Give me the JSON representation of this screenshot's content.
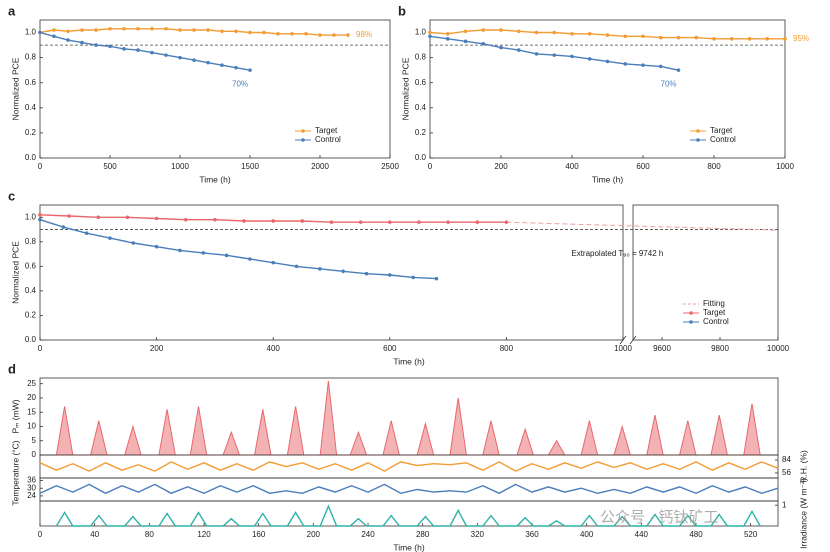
{
  "chart_data": [
    {
      "type": "line",
      "panel": "a",
      "xlabel": "Time (h)",
      "ylabel": "Normalized PCE",
      "xlim": [
        0,
        2500
      ],
      "xticks": [
        0,
        500,
        1000,
        1500,
        2000,
        2500
      ],
      "ylim": [
        0,
        1.1
      ],
      "yticks": [
        {
          "value": 0,
          "label": "0.0"
        },
        0.2,
        0.4,
        0.6,
        0.8,
        {
          "value": 1,
          "label": "1.0"
        }
      ],
      "reference_line": 0.9,
      "markers": true,
      "legend": "lower right",
      "series": [
        {
          "name": "Target",
          "color": "#f39c34",
          "end_label": "98%",
          "x": [
            0,
            100,
            200,
            300,
            400,
            500,
            600,
            700,
            800,
            900,
            1000,
            1100,
            1200,
            1300,
            1400,
            1500,
            1600,
            1700,
            1800,
            1900,
            2000,
            2100,
            2200
          ],
          "values": [
            1.0,
            1.02,
            1.01,
            1.02,
            1.02,
            1.03,
            1.03,
            1.03,
            1.03,
            1.03,
            1.02,
            1.02,
            1.02,
            1.01,
            1.01,
            1.0,
            1.0,
            0.99,
            0.99,
            0.99,
            0.98,
            0.98,
            0.98
          ]
        },
        {
          "name": "Control",
          "color": "#4a7ebb",
          "end_label": "70%",
          "x": [
            0,
            100,
            200,
            300,
            400,
            500,
            600,
            700,
            800,
            900,
            1000,
            1100,
            1200,
            1300,
            1400,
            1500
          ],
          "values": [
            1.0,
            0.97,
            0.94,
            0.92,
            0.9,
            0.89,
            0.87,
            0.86,
            0.84,
            0.82,
            0.8,
            0.78,
            0.76,
            0.74,
            0.72,
            0.7
          ]
        }
      ]
    },
    {
      "type": "line",
      "panel": "b",
      "xlabel": "Time (h)",
      "ylabel": "Normalized PCE",
      "xlim": [
        0,
        1000
      ],
      "xticks": [
        0,
        200,
        400,
        600,
        800,
        1000
      ],
      "ylim": [
        0,
        1.1
      ],
      "yticks": [
        {
          "value": 0,
          "label": "0.0"
        },
        0.2,
        0.4,
        0.6,
        0.8,
        {
          "value": 1,
          "label": "1.0"
        }
      ],
      "reference_line": 0.9,
      "markers": true,
      "legend": "lower right",
      "series": [
        {
          "name": "Target",
          "color": "#f39c34",
          "end_label": "95%",
          "x": [
            0,
            50,
            100,
            150,
            200,
            250,
            300,
            350,
            400,
            450,
            500,
            550,
            600,
            650,
            700,
            750,
            800,
            850,
            900,
            950,
            1000
          ],
          "values": [
            1.0,
            0.99,
            1.01,
            1.02,
            1.02,
            1.01,
            1.0,
            1.0,
            0.99,
            0.99,
            0.98,
            0.97,
            0.97,
            0.96,
            0.96,
            0.96,
            0.95,
            0.95,
            0.95,
            0.95,
            0.95
          ]
        },
        {
          "name": "Control",
          "color": "#4a7ebb",
          "end_label": "70%",
          "x": [
            0,
            50,
            100,
            150,
            200,
            250,
            300,
            350,
            400,
            450,
            500,
            550,
            600,
            650,
            700
          ],
          "values": [
            0.97,
            0.95,
            0.93,
            0.91,
            0.88,
            0.86,
            0.83,
            0.82,
            0.81,
            0.79,
            0.77,
            0.75,
            0.74,
            0.73,
            0.7
          ]
        }
      ]
    },
    {
      "type": "line",
      "panel": "c",
      "xlabel": "Time (h)",
      "ylabel": "Normalized PCE",
      "xlim_segments": [
        [
          0,
          1000
        ],
        [
          9500,
          10000
        ]
      ],
      "xticks": [
        0,
        200,
        400,
        600,
        800,
        1000,
        9600,
        9800,
        10000
      ],
      "ylim": [
        0,
        1.1
      ],
      "yticks": [
        {
          "value": 0,
          "label": "0.0"
        },
        0.2,
        0.4,
        0.6,
        0.8,
        {
          "value": 1,
          "label": "1.0"
        }
      ],
      "reference_line": 0.9,
      "markers": true,
      "legend": "lower right",
      "annotation": "Extrapolated T₉₀ = 9742 h",
      "series": [
        {
          "name": "Fitting",
          "color": "#e8a0a0",
          "linestyle": "dashed",
          "x": [
            800,
            10000
          ],
          "values": [
            0.96,
            0.895
          ]
        },
        {
          "name": "Target",
          "color": "#e8676b",
          "x": [
            0,
            50,
            100,
            150,
            200,
            250,
            300,
            350,
            400,
            450,
            500,
            550,
            600,
            650,
            700,
            750,
            800
          ],
          "values": [
            1.02,
            1.01,
            1.0,
            1.0,
            0.99,
            0.98,
            0.98,
            0.97,
            0.97,
            0.97,
            0.96,
            0.96,
            0.96,
            0.96,
            0.96,
            0.96,
            0.96
          ]
        },
        {
          "name": "Control",
          "color": "#4a7ebb",
          "x": [
            0,
            40,
            80,
            120,
            160,
            200,
            240,
            280,
            320,
            360,
            400,
            440,
            480,
            520,
            560,
            600,
            640,
            680
          ],
          "values": [
            0.98,
            0.92,
            0.87,
            0.83,
            0.79,
            0.76,
            0.73,
            0.71,
            0.69,
            0.66,
            0.63,
            0.6,
            0.58,
            0.56,
            0.54,
            0.53,
            0.51,
            0.5
          ]
        }
      ]
    },
    {
      "type": "area",
      "panel": "d",
      "ylabel": "Pₘ (mW)",
      "xlim": [
        0,
        540
      ],
      "ylim": [
        0,
        27
      ],
      "yticks": [
        0,
        5,
        10,
        15,
        20,
        25
      ],
      "series": [
        {
          "color": "#e8676b",
          "x": [
            12,
            18,
            24,
            37,
            43,
            49,
            62,
            68,
            74,
            87,
            93,
            99,
            110,
            116,
            122,
            134,
            140,
            146,
            157,
            163,
            169,
            181,
            187,
            193,
            205,
            211,
            217,
            227,
            233,
            239,
            251,
            257,
            263,
            276,
            282,
            288,
            300,
            306,
            312,
            324,
            330,
            336,
            349,
            355,
            361,
            372,
            378,
            384,
            396,
            402,
            408,
            420,
            426,
            432,
            444,
            450,
            456,
            468,
            474,
            480,
            491,
            497,
            503,
            515,
            521,
            527
          ],
          "values": [
            0,
            17,
            0,
            0,
            12,
            0,
            0,
            10,
            0,
            0,
            16,
            0,
            0,
            17,
            0,
            0,
            8,
            0,
            0,
            16,
            0,
            0,
            17,
            0,
            0,
            26,
            0,
            0,
            8,
            0,
            0,
            12,
            0,
            0,
            11,
            0,
            0,
            20,
            0,
            0,
            12,
            0,
            0,
            9,
            0,
            0,
            5,
            0,
            0,
            12,
            0,
            0,
            10,
            0,
            0,
            14,
            0,
            0,
            12,
            0,
            0,
            14,
            0,
            0,
            18,
            0
          ]
        }
      ]
    },
    {
      "type": "line",
      "ylabel": "R.H. (%)",
      "ytick_side": "right",
      "xlim": [
        0,
        540
      ],
      "ylim": [
        45,
        95
      ],
      "yticks": [
        56,
        84
      ],
      "series": [
        {
          "color": "#f39c34",
          "x": [
            0,
            12,
            24,
            36,
            48,
            60,
            72,
            84,
            96,
            108,
            120,
            132,
            144,
            156,
            168,
            180,
            192,
            204,
            216,
            228,
            240,
            252,
            264,
            276,
            288,
            300,
            312,
            324,
            336,
            348,
            360,
            372,
            384,
            396,
            408,
            420,
            432,
            444,
            456,
            468,
            480,
            492,
            504,
            516,
            528,
            540
          ],
          "values": [
            78,
            62,
            76,
            60,
            78,
            62,
            74,
            60,
            80,
            64,
            78,
            62,
            76,
            62,
            80,
            70,
            78,
            64,
            76,
            62,
            78,
            60,
            80,
            72,
            76,
            74,
            78,
            62,
            80,
            60,
            76,
            64,
            78,
            66,
            80,
            68,
            78,
            64,
            76,
            64,
            80,
            62,
            78,
            64,
            80,
            66
          ]
        }
      ]
    },
    {
      "type": "line",
      "ylabel": "Temperature (°C)",
      "xlim": [
        0,
        540
      ],
      "ylim": [
        20,
        38
      ],
      "yticks": [
        24,
        30,
        36
      ],
      "series": [
        {
          "color": "#4a7ebb",
          "x": [
            0,
            12,
            24,
            36,
            48,
            60,
            72,
            84,
            96,
            108,
            120,
            132,
            144,
            156,
            168,
            180,
            192,
            204,
            216,
            228,
            240,
            252,
            264,
            276,
            288,
            300,
            312,
            324,
            336,
            348,
            360,
            372,
            384,
            396,
            408,
            420,
            432,
            444,
            456,
            468,
            480,
            492,
            504,
            516,
            528,
            540
          ],
          "values": [
            26,
            32,
            27,
            33,
            26,
            32,
            27,
            33,
            26,
            31,
            26,
            32,
            27,
            32,
            26,
            28,
            26,
            31,
            27,
            32,
            27,
            33,
            26,
            29,
            27,
            28,
            27,
            32,
            26,
            33,
            27,
            31,
            27,
            30,
            26,
            29,
            26,
            31,
            27,
            31,
            26,
            32,
            27,
            31,
            26,
            30
          ]
        }
      ]
    },
    {
      "type": "line",
      "ylabel": "Irradiance (W m⁻²)",
      "ytick_side": "right",
      "xlabel": "Time (h)",
      "xlim": [
        0,
        540
      ],
      "xticks": [
        0,
        40,
        80,
        120,
        160,
        200,
        240,
        280,
        320,
        360,
        400,
        440,
        480,
        520
      ],
      "ylim": [
        0,
        1.2
      ],
      "yticks": [
        1
      ],
      "series": [
        {
          "color": "#2fb3a8",
          "x": [
            12,
            18,
            24,
            37,
            43,
            49,
            62,
            68,
            74,
            87,
            93,
            99,
            110,
            116,
            122,
            134,
            140,
            146,
            157,
            163,
            169,
            181,
            187,
            193,
            205,
            211,
            217,
            227,
            233,
            239,
            251,
            257,
            263,
            276,
            282,
            288,
            300,
            306,
            312,
            324,
            330,
            336,
            349,
            355,
            361,
            372,
            378,
            384,
            396,
            402,
            408,
            420,
            426,
            432,
            444,
            450,
            456,
            468,
            474,
            480,
            491,
            497,
            503,
            515,
            521,
            527
          ],
          "values": [
            0,
            0.65,
            0,
            0,
            0.5,
            0,
            0,
            0.45,
            0,
            0,
            0.6,
            0,
            0,
            0.65,
            0,
            0,
            0.35,
            0,
            0,
            0.6,
            0,
            0,
            0.65,
            0,
            0,
            0.95,
            0,
            0,
            0.35,
            0,
            0,
            0.5,
            0,
            0,
            0.45,
            0,
            0,
            0.75,
            0,
            0,
            0.5,
            0,
            0,
            0.4,
            0,
            0,
            0.25,
            0,
            0,
            0.5,
            0,
            0,
            0.45,
            0,
            0,
            0.55,
            0,
            0,
            0.5,
            0,
            0,
            0.55,
            0,
            0,
            0.7,
            0
          ]
        }
      ]
    }
  ],
  "watermark": "公众号 · 钙钛矿工"
}
